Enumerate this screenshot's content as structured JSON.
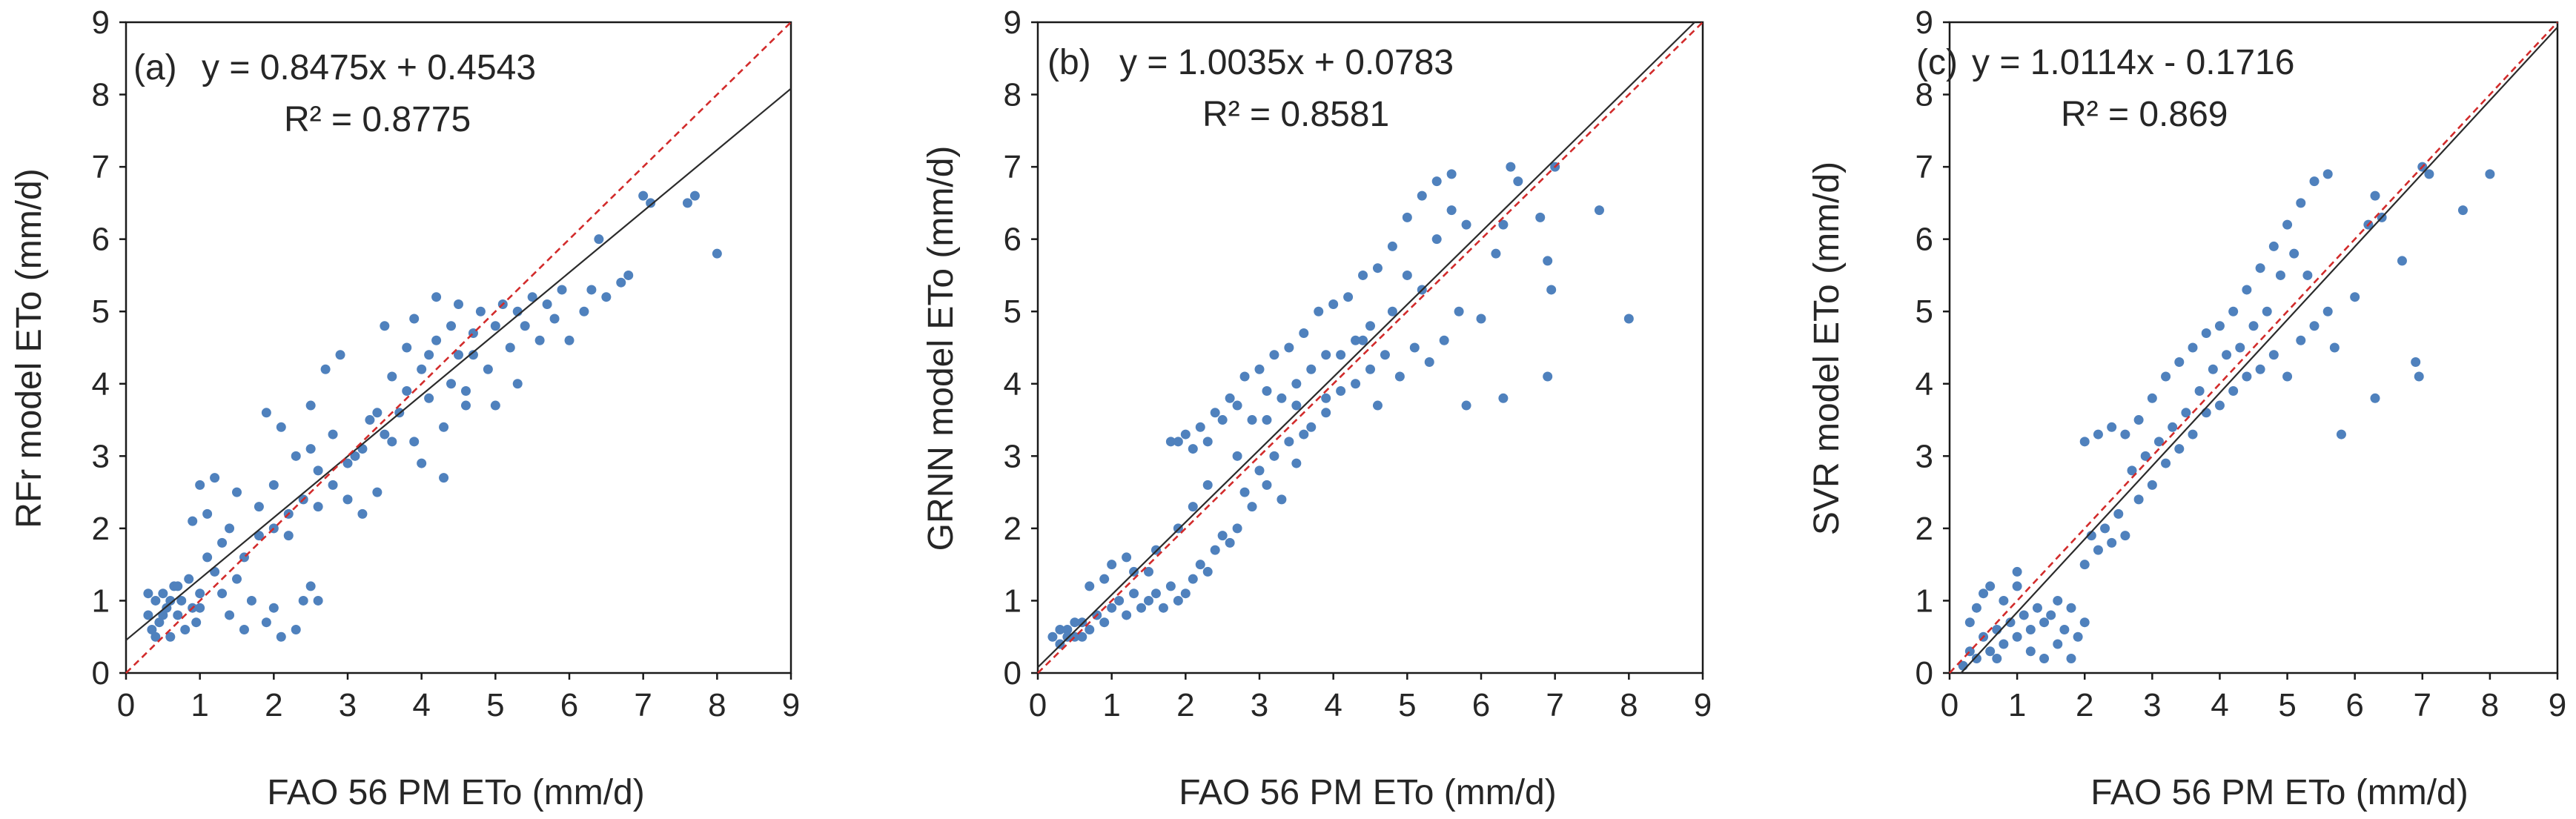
{
  "chart_data": [
    {
      "type": "scatter",
      "panel": "a",
      "label_text": "(a)",
      "equation": "y = 0.8475x + 0.4543",
      "r2_text": "R² = 0.8775",
      "slope": 0.8475,
      "intercept": 0.4543,
      "xlabel": "FAO 56 PM ETo (mm/d)",
      "ylabel": "RFr model ETo  (mm/d)",
      "xlim": [
        0,
        9
      ],
      "ylim": [
        0,
        9
      ],
      "ticks": [
        "0",
        "1",
        "2",
        "3",
        "4",
        "5",
        "6",
        "7",
        "8",
        "9"
      ],
      "series": [
        {
          "name": "regression fit",
          "type": "line"
        },
        {
          "name": "1:1 line",
          "type": "dashed-line"
        }
      ],
      "points": [
        [
          0.3,
          0.8
        ],
        [
          0.35,
          0.6
        ],
        [
          0.4,
          1.0
        ],
        [
          0.45,
          0.7
        ],
        [
          0.5,
          1.1
        ],
        [
          0.55,
          0.9
        ],
        [
          0.6,
          0.5
        ],
        [
          0.65,
          1.2
        ],
        [
          0.7,
          0.8
        ],
        [
          0.75,
          1.0
        ],
        [
          0.8,
          0.6
        ],
        [
          0.85,
          1.3
        ],
        [
          0.9,
          0.9
        ],
        [
          0.95,
          0.7
        ],
        [
          1.0,
          1.1
        ],
        [
          0.4,
          0.5
        ],
        [
          0.3,
          1.1
        ],
        [
          0.6,
          1.0
        ],
        [
          0.5,
          0.8
        ],
        [
          0.7,
          1.2
        ],
        [
          1.1,
          2.2
        ],
        [
          1.3,
          1.8
        ],
        [
          1.5,
          2.5
        ],
        [
          1.2,
          1.4
        ],
        [
          1.4,
          2.0
        ],
        [
          1.6,
          1.6
        ],
        [
          1.8,
          2.3
        ],
        [
          2.0,
          2.6
        ],
        [
          1.7,
          1.0
        ],
        [
          1.9,
          0.7
        ],
        [
          2.1,
          0.5
        ],
        [
          2.3,
          0.6
        ],
        [
          2.5,
          1.2
        ],
        [
          2.2,
          1.9
        ],
        [
          2.4,
          2.4
        ],
        [
          2.6,
          2.8
        ],
        [
          2.8,
          3.3
        ],
        [
          2.7,
          4.2
        ],
        [
          2.9,
          4.4
        ],
        [
          2.5,
          3.7
        ],
        [
          1.0,
          2.6
        ],
        [
          1.2,
          2.7
        ],
        [
          0.9,
          2.1
        ],
        [
          1.1,
          1.6
        ],
        [
          1.4,
          0.8
        ],
        [
          1.6,
          0.6
        ],
        [
          2.0,
          0.9
        ],
        [
          2.4,
          1.0
        ],
        [
          2.6,
          1.0
        ],
        [
          3.0,
          2.4
        ],
        [
          3.2,
          2.2
        ],
        [
          3.4,
          2.5
        ],
        [
          3.1,
          3.0
        ],
        [
          3.3,
          3.5
        ],
        [
          3.5,
          3.3
        ],
        [
          3.7,
          3.6
        ],
        [
          3.6,
          4.1
        ],
        [
          3.8,
          4.5
        ],
        [
          3.5,
          4.8
        ],
        [
          3.9,
          4.9
        ],
        [
          4.0,
          4.2
        ],
        [
          4.2,
          4.6
        ],
        [
          4.1,
          3.8
        ],
        [
          4.3,
          3.4
        ],
        [
          4.4,
          4.0
        ],
        [
          4.5,
          4.4
        ],
        [
          4.6,
          3.9
        ],
        [
          4.7,
          4.7
        ],
        [
          4.8,
          5.0
        ],
        [
          4.2,
          5.2
        ],
        [
          4.5,
          5.1
        ],
        [
          4.9,
          4.2
        ],
        [
          5.0,
          4.8
        ],
        [
          5.1,
          5.1
        ],
        [
          5.2,
          4.5
        ],
        [
          5.3,
          5.0
        ],
        [
          5.4,
          4.8
        ],
        [
          5.5,
          5.2
        ],
        [
          5.6,
          4.6
        ],
        [
          5.8,
          4.9
        ],
        [
          4.0,
          2.9
        ],
        [
          4.3,
          2.7
        ],
        [
          3.9,
          3.2
        ],
        [
          4.6,
          3.7
        ],
        [
          5.0,
          3.7
        ],
        [
          5.3,
          4.0
        ],
        [
          5.7,
          5.1
        ],
        [
          6.0,
          4.6
        ],
        [
          6.2,
          5.0
        ],
        [
          6.3,
          5.3
        ],
        [
          6.5,
          5.2
        ],
        [
          6.7,
          5.4
        ],
        [
          6.8,
          5.5
        ],
        [
          6.4,
          6.0
        ],
        [
          7.0,
          6.6
        ],
        [
          7.1,
          6.5
        ],
        [
          7.6,
          6.5
        ],
        [
          7.7,
          6.6
        ],
        [
          8.0,
          5.8
        ],
        [
          5.9,
          5.3
        ],
        [
          2.0,
          2.0
        ],
        [
          2.2,
          2.2
        ],
        [
          1.8,
          1.9
        ],
        [
          2.6,
          2.3
        ],
        [
          2.8,
          2.6
        ],
        [
          3.0,
          2.9
        ],
        [
          3.2,
          3.1
        ],
        [
          3.4,
          3.6
        ],
        [
          1.5,
          1.3
        ],
        [
          1.3,
          1.1
        ],
        [
          1.0,
          0.9
        ],
        [
          2.3,
          3.0
        ],
        [
          2.1,
          3.4
        ],
        [
          1.9,
          3.6
        ],
        [
          2.5,
          3.1
        ],
        [
          3.6,
          3.2
        ],
        [
          3.8,
          3.9
        ],
        [
          4.1,
          4.4
        ],
        [
          4.4,
          4.8
        ],
        [
          4.7,
          4.4
        ]
      ]
    },
    {
      "type": "scatter",
      "panel": "b",
      "label_text": "(b)",
      "equation": "y = 1.0035x + 0.0783",
      "r2_text": "R² = 0.8581",
      "slope": 1.0035,
      "intercept": 0.0783,
      "xlabel": "FAO 56 PM ETo (mm/d)",
      "ylabel": "GRNN model ETo (mm/d)",
      "xlim": [
        0,
        9
      ],
      "ylim": [
        0,
        9
      ],
      "ticks": [
        "0",
        "1",
        "2",
        "3",
        "4",
        "5",
        "6",
        "7",
        "8",
        "9"
      ],
      "series": [
        {
          "name": "regression fit",
          "type": "line"
        },
        {
          "name": "1:1 line",
          "type": "dashed-line"
        }
      ],
      "points": [
        [
          0.2,
          0.5
        ],
        [
          0.3,
          0.4
        ],
        [
          0.4,
          0.6
        ],
        [
          0.5,
          0.5
        ],
        [
          0.6,
          0.7
        ],
        [
          0.7,
          0.6
        ],
        [
          0.8,
          0.8
        ],
        [
          0.9,
          0.7
        ],
        [
          1.0,
          0.9
        ],
        [
          1.1,
          1.0
        ],
        [
          1.2,
          0.8
        ],
        [
          1.3,
          1.1
        ],
        [
          1.4,
          0.9
        ],
        [
          1.5,
          1.0
        ],
        [
          1.6,
          1.1
        ],
        [
          1.7,
          0.9
        ],
        [
          1.8,
          1.2
        ],
        [
          1.9,
          1.0
        ],
        [
          2.0,
          1.1
        ],
        [
          0.9,
          1.3
        ],
        [
          1.0,
          1.5
        ],
        [
          1.2,
          1.6
        ],
        [
          0.7,
          1.2
        ],
        [
          1.5,
          1.4
        ],
        [
          2.1,
          1.3
        ],
        [
          2.2,
          1.5
        ],
        [
          2.3,
          1.4
        ],
        [
          2.4,
          1.7
        ],
        [
          2.5,
          1.9
        ],
        [
          2.6,
          1.8
        ],
        [
          2.7,
          2.0
        ],
        [
          2.8,
          2.5
        ],
        [
          2.9,
          2.3
        ],
        [
          3.0,
          2.8
        ],
        [
          3.1,
          2.6
        ],
        [
          3.2,
          3.0
        ],
        [
          3.3,
          2.4
        ],
        [
          3.4,
          3.2
        ],
        [
          3.5,
          2.9
        ],
        [
          3.6,
          3.3
        ],
        [
          1.8,
          3.2
        ],
        [
          2.0,
          3.3
        ],
        [
          2.2,
          3.4
        ],
        [
          2.4,
          3.6
        ],
        [
          2.6,
          3.8
        ],
        [
          2.8,
          4.1
        ],
        [
          3.0,
          4.2
        ],
        [
          3.2,
          4.4
        ],
        [
          3.4,
          4.5
        ],
        [
          3.6,
          4.7
        ],
        [
          3.8,
          5.0
        ],
        [
          4.0,
          5.1
        ],
        [
          4.2,
          5.2
        ],
        [
          4.4,
          5.5
        ],
        [
          4.6,
          5.6
        ],
        [
          4.8,
          5.9
        ],
        [
          5.0,
          6.3
        ],
        [
          5.2,
          6.6
        ],
        [
          5.4,
          6.8
        ],
        [
          5.6,
          6.9
        ],
        [
          3.7,
          3.4
        ],
        [
          3.9,
          3.6
        ],
        [
          4.1,
          3.9
        ],
        [
          4.3,
          4.0
        ],
        [
          4.5,
          4.2
        ],
        [
          4.7,
          4.4
        ],
        [
          4.9,
          4.1
        ],
        [
          5.1,
          4.5
        ],
        [
          5.3,
          4.3
        ],
        [
          5.5,
          4.6
        ],
        [
          5.7,
          5.0
        ],
        [
          5.8,
          3.7
        ],
        [
          6.0,
          4.9
        ],
        [
          6.2,
          5.8
        ],
        [
          6.3,
          6.2
        ],
        [
          6.4,
          7.0
        ],
        [
          6.5,
          6.8
        ],
        [
          6.8,
          6.3
        ],
        [
          6.9,
          4.1
        ],
        [
          6.3,
          3.8
        ],
        [
          6.9,
          5.7
        ],
        [
          6.95,
          5.3
        ],
        [
          7.0,
          7.0
        ],
        [
          7.6,
          6.4
        ],
        [
          8.0,
          4.9
        ],
        [
          4.6,
          3.7
        ],
        [
          4.4,
          4.6
        ],
        [
          3.9,
          4.4
        ],
        [
          3.5,
          4.0
        ],
        [
          3.1,
          3.5
        ],
        [
          2.7,
          3.0
        ],
        [
          2.3,
          2.6
        ],
        [
          2.1,
          2.3
        ],
        [
          1.9,
          2.0
        ],
        [
          1.6,
          1.7
        ],
        [
          1.3,
          1.4
        ],
        [
          0.6,
          0.5
        ],
        [
          0.5,
          0.7
        ],
        [
          0.4,
          0.5
        ],
        [
          0.3,
          0.6
        ],
        [
          5.0,
          5.5
        ],
        [
          5.2,
          5.3
        ],
        [
          5.4,
          6.0
        ],
        [
          5.6,
          6.4
        ],
        [
          4.8,
          5.0
        ],
        [
          4.5,
          4.8
        ],
        [
          4.3,
          4.6
        ],
        [
          4.1,
          4.4
        ],
        [
          3.9,
          3.8
        ],
        [
          3.7,
          4.2
        ],
        [
          3.5,
          3.7
        ],
        [
          3.3,
          3.8
        ],
        [
          3.1,
          3.9
        ],
        [
          2.9,
          3.5
        ],
        [
          2.7,
          3.7
        ],
        [
          2.5,
          3.5
        ],
        [
          2.3,
          3.2
        ],
        [
          2.1,
          3.1
        ],
        [
          1.9,
          3.2
        ],
        [
          5.8,
          6.2
        ]
      ]
    },
    {
      "type": "scatter",
      "panel": "c",
      "label_text": "(c)",
      "equation": "y = 1.0114x - 0.1716",
      "r2_text": "R² = 0.869",
      "slope": 1.0114,
      "intercept": -0.1716,
      "xlabel": "FAO 56 PM ETo (mm/d)",
      "ylabel": "SVR model ETo (mm/d)",
      "xlim": [
        0,
        9
      ],
      "ylim": [
        0,
        9
      ],
      "ticks": [
        "0",
        "1",
        "2",
        "3",
        "4",
        "5",
        "6",
        "7",
        "8",
        "9"
      ],
      "series": [
        {
          "name": "regression fit",
          "type": "line"
        },
        {
          "name": "1:1 line",
          "type": "dashed-line"
        }
      ],
      "points": [
        [
          0.2,
          0.1
        ],
        [
          0.3,
          0.3
        ],
        [
          0.4,
          0.2
        ],
        [
          0.5,
          0.5
        ],
        [
          0.6,
          0.3
        ],
        [
          0.7,
          0.6
        ],
        [
          0.8,
          0.4
        ],
        [
          0.9,
          0.7
        ],
        [
          1.0,
          0.5
        ],
        [
          1.1,
          0.8
        ],
        [
          1.2,
          0.6
        ],
        [
          1.3,
          0.9
        ],
        [
          1.4,
          0.7
        ],
        [
          1.5,
          0.8
        ],
        [
          1.6,
          1.0
        ],
        [
          1.7,
          0.6
        ],
        [
          1.8,
          0.9
        ],
        [
          1.9,
          0.5
        ],
        [
          2.0,
          0.7
        ],
        [
          0.5,
          1.1
        ],
        [
          0.6,
          1.2
        ],
        [
          0.4,
          0.9
        ],
        [
          0.8,
          1.0
        ],
        [
          1.0,
          1.2
        ],
        [
          1.2,
          0.3
        ],
        [
          1.4,
          0.2
        ],
        [
          1.6,
          0.4
        ],
        [
          1.8,
          0.2
        ],
        [
          0.3,
          0.7
        ],
        [
          0.7,
          0.2
        ],
        [
          2.0,
          1.5
        ],
        [
          2.2,
          1.7
        ],
        [
          2.4,
          1.8
        ],
        [
          2.6,
          1.9
        ],
        [
          2.8,
          2.4
        ],
        [
          3.0,
          2.6
        ],
        [
          3.2,
          2.9
        ],
        [
          3.4,
          3.1
        ],
        [
          3.6,
          3.3
        ],
        [
          3.8,
          3.6
        ],
        [
          2.0,
          3.2
        ],
        [
          2.2,
          3.3
        ],
        [
          2.4,
          3.4
        ],
        [
          2.6,
          3.3
        ],
        [
          2.8,
          3.5
        ],
        [
          3.0,
          3.8
        ],
        [
          3.2,
          4.1
        ],
        [
          3.4,
          4.3
        ],
        [
          3.6,
          4.5
        ],
        [
          3.8,
          4.7
        ],
        [
          4.0,
          4.8
        ],
        [
          4.2,
          5.0
        ],
        [
          4.4,
          5.3
        ],
        [
          4.6,
          5.6
        ],
        [
          4.8,
          5.9
        ],
        [
          5.0,
          6.2
        ],
        [
          5.2,
          6.5
        ],
        [
          5.4,
          6.8
        ],
        [
          5.6,
          6.9
        ],
        [
          4.9,
          5.5
        ],
        [
          4.0,
          3.7
        ],
        [
          4.2,
          3.9
        ],
        [
          4.4,
          4.1
        ],
        [
          4.6,
          4.2
        ],
        [
          4.8,
          4.4
        ],
        [
          5.0,
          4.1
        ],
        [
          5.2,
          4.6
        ],
        [
          5.4,
          4.8
        ],
        [
          5.6,
          5.0
        ],
        [
          5.8,
          3.3
        ],
        [
          6.0,
          5.2
        ],
        [
          6.2,
          6.2
        ],
        [
          6.3,
          6.6
        ],
        [
          6.4,
          6.3
        ],
        [
          6.7,
          5.7
        ],
        [
          6.9,
          4.3
        ],
        [
          6.95,
          4.1
        ],
        [
          7.0,
          7.0
        ],
        [
          7.1,
          6.9
        ],
        [
          7.6,
          6.4
        ],
        [
          8.0,
          6.9
        ],
        [
          6.3,
          3.8
        ],
        [
          5.7,
          4.5
        ],
        [
          5.3,
          5.5
        ],
        [
          5.1,
          5.8
        ],
        [
          4.7,
          5.0
        ],
        [
          4.5,
          4.8
        ],
        [
          4.3,
          4.5
        ],
        [
          4.1,
          4.4
        ],
        [
          3.9,
          4.2
        ],
        [
          3.7,
          3.9
        ],
        [
          3.5,
          3.6
        ],
        [
          3.3,
          3.4
        ],
        [
          3.1,
          3.2
        ],
        [
          2.9,
          3.0
        ],
        [
          2.7,
          2.8
        ],
        [
          2.5,
          2.2
        ],
        [
          2.3,
          2.0
        ],
        [
          2.1,
          1.9
        ],
        [
          1.0,
          1.4
        ]
      ]
    }
  ]
}
